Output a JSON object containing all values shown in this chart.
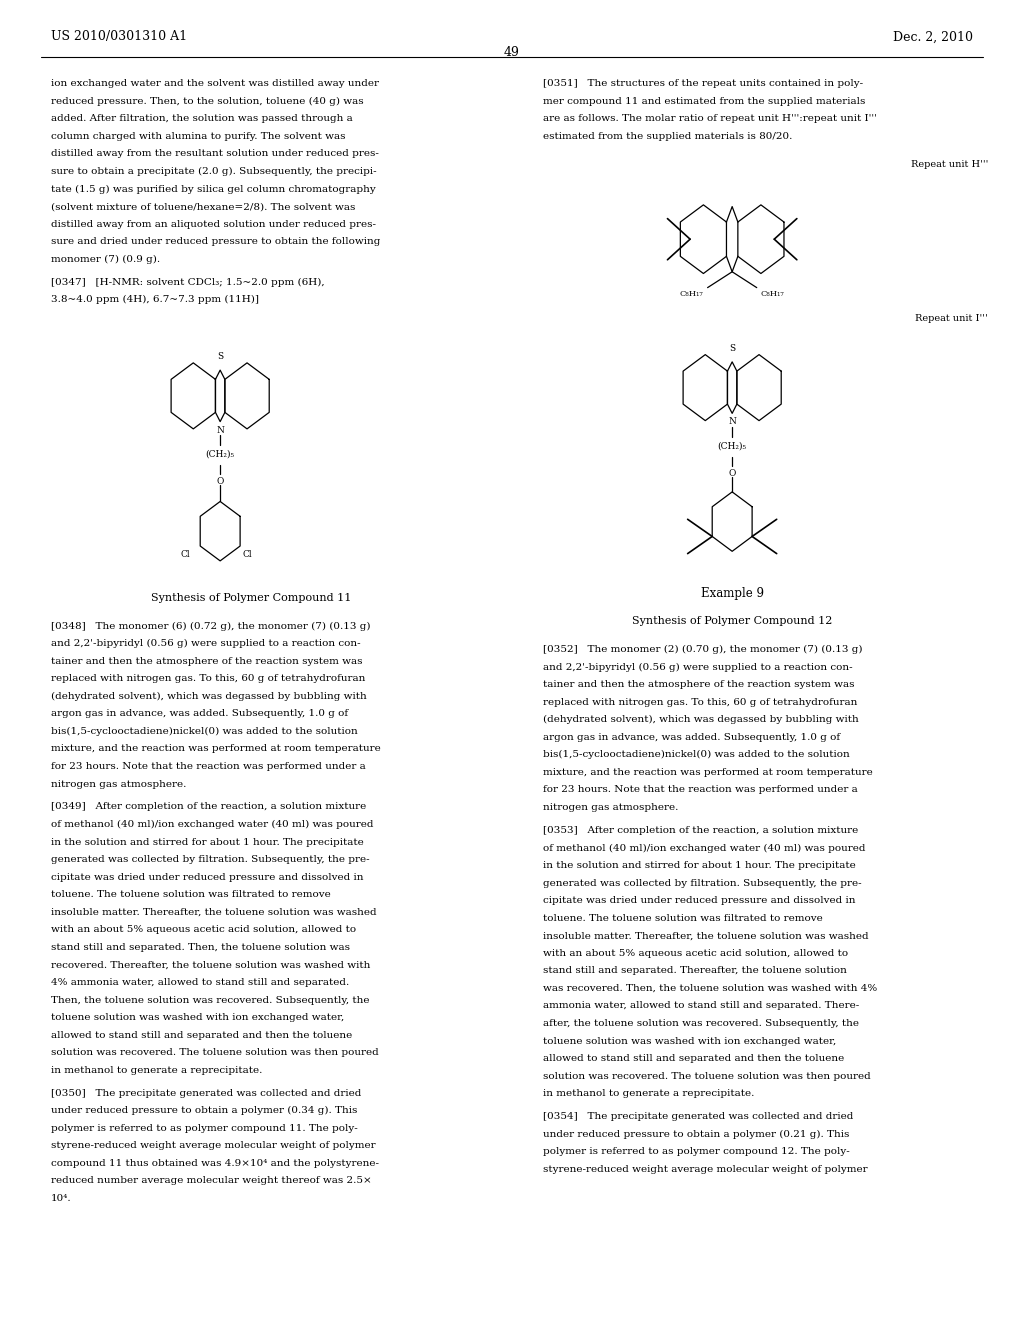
{
  "page_number": "49",
  "header_left": "US 2010/0301310 A1",
  "header_right": "Dec. 2, 2010",
  "background_color": "#ffffff"
}
